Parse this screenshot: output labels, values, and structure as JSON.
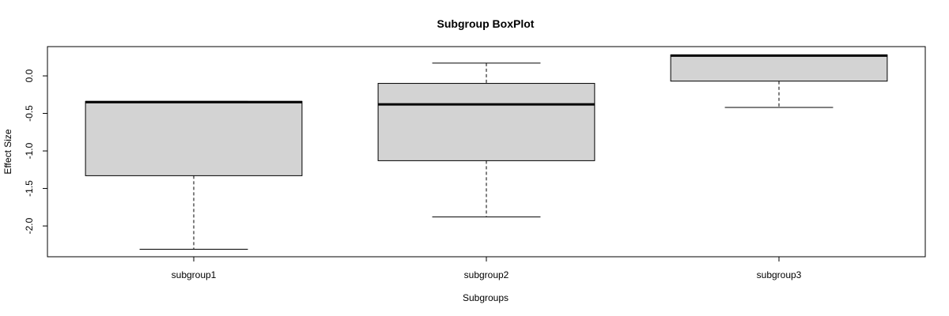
{
  "chart_data": {
    "type": "boxplot",
    "title": "Subgroup BoxPlot",
    "xlabel": "Subgroups",
    "ylabel": "Effect Size",
    "categories": [
      "subgroup1",
      "subgroup2",
      "subgroup3"
    ],
    "boxes": [
      {
        "category": "subgroup1",
        "lower_whisker": -2.31,
        "q1": -1.33,
        "median": -0.35,
        "q3": -0.34,
        "upper_whisker": -0.34
      },
      {
        "category": "subgroup2",
        "lower_whisker": -1.88,
        "q1": -1.13,
        "median": -0.38,
        "q3": -0.1,
        "upper_whisker": 0.17
      },
      {
        "category": "subgroup3",
        "lower_whisker": -0.42,
        "q1": -0.07,
        "median": 0.27,
        "q3": 0.28,
        "upper_whisker": 0.28
      }
    ],
    "yticks": [
      "0.0",
      "-0.5",
      "-1.0",
      "-1.5",
      "-2.0"
    ],
    "ylim": [
      -2.41,
      0.39
    ],
    "box_fill": "#d3d3d3",
    "grid": false
  }
}
